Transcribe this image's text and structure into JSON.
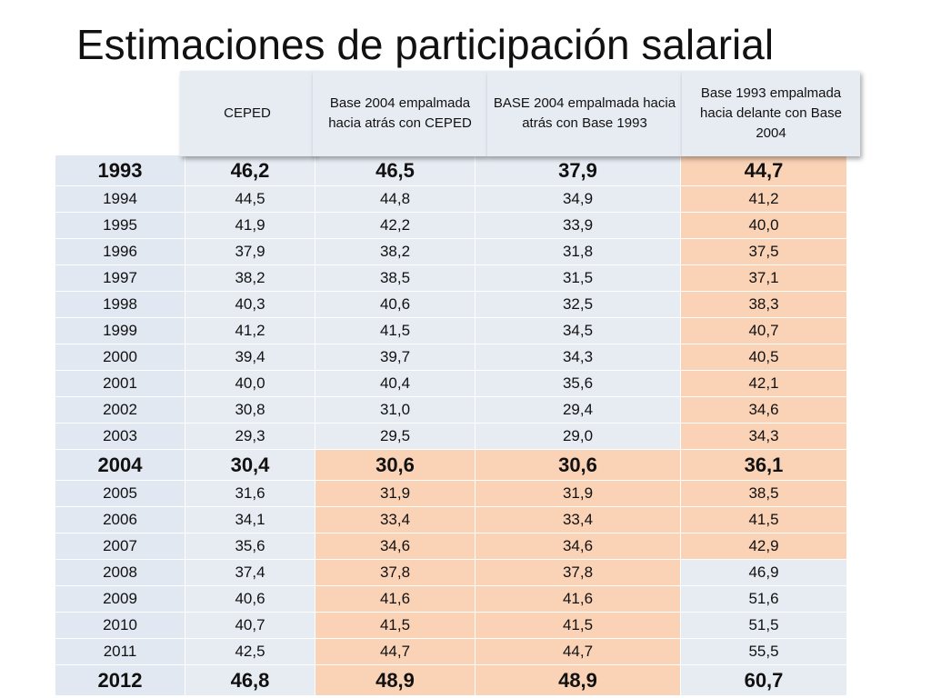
{
  "title": "Estimaciones de participación salarial",
  "headers": [
    "CEPED",
    "Base 2004 empalmada hacia atrás con CEPED",
    "BASE 2004 empalmada hacia atrás con Base 1993",
    "Base 1993 empalmada hacia delante con Base 2004"
  ],
  "colors": {
    "blue_cell": "#e7ecf3",
    "year_cell": "#e2e8f1",
    "peach_cell": "#fad2b6"
  },
  "rows": [
    {
      "cells": [
        "1993",
        "46,2",
        "46,5",
        "37,9",
        "44,7"
      ],
      "bold": true,
      "peach": [
        false,
        false,
        false,
        true
      ]
    },
    {
      "cells": [
        "1994",
        "44,5",
        "44,8",
        "34,9",
        "41,2"
      ],
      "bold": false,
      "peach": [
        false,
        false,
        false,
        true
      ]
    },
    {
      "cells": [
        "1995",
        "41,9",
        "42,2",
        "33,9",
        "40,0"
      ],
      "bold": false,
      "peach": [
        false,
        false,
        false,
        true
      ]
    },
    {
      "cells": [
        "1996",
        "37,9",
        "38,2",
        "31,8",
        "37,5"
      ],
      "bold": false,
      "peach": [
        false,
        false,
        false,
        true
      ]
    },
    {
      "cells": [
        "1997",
        "38,2",
        "38,5",
        "31,5",
        "37,1"
      ],
      "bold": false,
      "peach": [
        false,
        false,
        false,
        true
      ]
    },
    {
      "cells": [
        "1998",
        "40,3",
        "40,6",
        "32,5",
        "38,3"
      ],
      "bold": false,
      "peach": [
        false,
        false,
        false,
        true
      ]
    },
    {
      "cells": [
        "1999",
        "41,2",
        "41,5",
        "34,5",
        "40,7"
      ],
      "bold": false,
      "peach": [
        false,
        false,
        false,
        true
      ]
    },
    {
      "cells": [
        "2000",
        "39,4",
        "39,7",
        "34,3",
        "40,5"
      ],
      "bold": false,
      "peach": [
        false,
        false,
        false,
        true
      ]
    },
    {
      "cells": [
        "2001",
        "40,0",
        "40,4",
        "35,6",
        "42,1"
      ],
      "bold": false,
      "peach": [
        false,
        false,
        false,
        true
      ]
    },
    {
      "cells": [
        "2002",
        "30,8",
        "31,0",
        "29,4",
        "34,6"
      ],
      "bold": false,
      "peach": [
        false,
        false,
        false,
        true
      ]
    },
    {
      "cells": [
        "2003",
        "29,3",
        "29,5",
        "29,0",
        "34,3"
      ],
      "bold": false,
      "peach": [
        false,
        false,
        false,
        true
      ]
    },
    {
      "cells": [
        "2004",
        "30,4",
        "30,6",
        "30,6",
        "36,1"
      ],
      "bold": true,
      "peach": [
        false,
        true,
        true,
        true
      ]
    },
    {
      "cells": [
        "2005",
        "31,6",
        "31,9",
        "31,9",
        "38,5"
      ],
      "bold": false,
      "peach": [
        false,
        true,
        true,
        true
      ]
    },
    {
      "cells": [
        "2006",
        "34,1",
        "33,4",
        "33,4",
        "41,5"
      ],
      "bold": false,
      "peach": [
        false,
        true,
        true,
        true
      ]
    },
    {
      "cells": [
        "2007",
        "35,6",
        "34,6",
        "34,6",
        "42,9"
      ],
      "bold": false,
      "peach": [
        false,
        true,
        true,
        true
      ]
    },
    {
      "cells": [
        "2008",
        "37,4",
        "37,8",
        "37,8",
        "46,9"
      ],
      "bold": false,
      "peach": [
        false,
        true,
        true,
        false
      ]
    },
    {
      "cells": [
        "2009",
        "40,6",
        "41,6",
        "41,6",
        "51,6"
      ],
      "bold": false,
      "peach": [
        false,
        true,
        true,
        false
      ]
    },
    {
      "cells": [
        "2010",
        "40,7",
        "41,5",
        "41,5",
        "51,5"
      ],
      "bold": false,
      "peach": [
        false,
        true,
        true,
        false
      ]
    },
    {
      "cells": [
        "2011",
        "42,5",
        "44,7",
        "44,7",
        "55,5"
      ],
      "bold": false,
      "peach": [
        false,
        true,
        true,
        false
      ]
    },
    {
      "cells": [
        "2012",
        "46,8",
        "48,9",
        "48,9",
        "60,7"
      ],
      "bold": true,
      "peach": [
        false,
        true,
        true,
        false
      ]
    }
  ]
}
